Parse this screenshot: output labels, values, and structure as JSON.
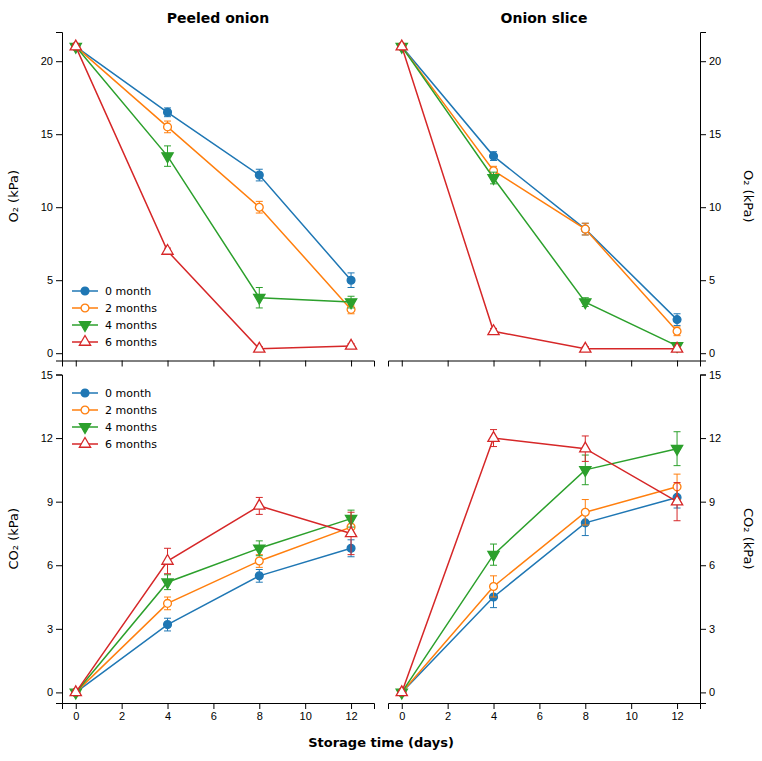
{
  "chart_data": [
    {
      "type": "line",
      "title": "Peeled onion",
      "ylabel": "O₂ (kPa)",
      "x": [
        0,
        4,
        8,
        12
      ],
      "xlim": [
        -0.6,
        13
      ],
      "xticks": [
        0,
        2,
        4,
        6,
        8,
        10,
        12
      ],
      "ylim": [
        -0.5,
        22
      ],
      "yticks": [
        0,
        5,
        10,
        15,
        20
      ],
      "tick_labels": "y",
      "grid": false,
      "legend": "lower-left",
      "series": [
        {
          "name": "0 month",
          "marker": "circle-filled",
          "values": [
            21,
            16.5,
            12.2,
            5.0
          ],
          "errors": [
            0.2,
            0.3,
            0.4,
            0.5
          ]
        },
        {
          "name": "2 months",
          "marker": "circle-open",
          "values": [
            21,
            15.5,
            10.0,
            3.0
          ],
          "errors": [
            0.2,
            0.4,
            0.4,
            0.3
          ]
        },
        {
          "name": "4 months",
          "marker": "triangle-down-filled",
          "values": [
            21,
            13.5,
            3.8,
            3.5
          ],
          "errors": [
            0.2,
            0.7,
            0.7,
            0.4
          ]
        },
        {
          "name": "6 months",
          "marker": "triangle-up-open",
          "values": [
            21,
            7.0,
            0.3,
            0.5
          ],
          "errors": [
            0.2,
            0.2,
            0.15,
            0.15
          ]
        }
      ]
    },
    {
      "type": "line",
      "title": "Onion slice",
      "ylabel": "O₂ (kPa)",
      "x": [
        0,
        4,
        8,
        12
      ],
      "xlim": [
        -0.6,
        13
      ],
      "xticks": [
        0,
        2,
        4,
        6,
        8,
        10,
        12
      ],
      "ylim": [
        -0.5,
        22
      ],
      "yticks": [
        0,
        5,
        10,
        15,
        20
      ],
      "tick_labels": "y",
      "grid": false,
      "series": [
        {
          "name": "0 month",
          "marker": "circle-filled",
          "values": [
            21,
            13.5,
            8.5,
            2.3
          ],
          "errors": [
            0.2,
            0.3,
            0.4,
            0.4
          ]
        },
        {
          "name": "2 months",
          "marker": "circle-open",
          "values": [
            21,
            12.5,
            8.5,
            1.5
          ],
          "errors": [
            0.2,
            0.3,
            0.4,
            0.3
          ]
        },
        {
          "name": "4 months",
          "marker": "triangle-down-filled",
          "values": [
            21,
            12.0,
            3.5,
            0.5
          ],
          "errors": [
            0.2,
            0.4,
            0.3,
            0.2
          ]
        },
        {
          "name": "6 months",
          "marker": "triangle-up-open",
          "values": [
            21,
            1.5,
            0.3,
            0.3
          ],
          "errors": [
            0.2,
            0.2,
            0.15,
            0.15
          ]
        }
      ]
    },
    {
      "type": "line",
      "ylabel": "CO₂ (kPa)",
      "xlabel": "Storage time (days)",
      "x": [
        0,
        4,
        8,
        12
      ],
      "xlim": [
        -0.6,
        13
      ],
      "xticks": [
        0,
        2,
        4,
        6,
        8,
        10,
        12
      ],
      "ylim": [
        -0.5,
        15
      ],
      "yticks": [
        0,
        3,
        6,
        9,
        12,
        15
      ],
      "tick_labels": true,
      "grid": false,
      "legend": "upper-left",
      "series": [
        {
          "name": "0 month",
          "marker": "circle-filled",
          "values": [
            0,
            3.2,
            5.5,
            6.8
          ],
          "errors": [
            0,
            0.3,
            0.3,
            0.4
          ]
        },
        {
          "name": "2 months",
          "marker": "circle-open",
          "values": [
            0,
            4.2,
            6.2,
            7.8
          ],
          "errors": [
            0,
            0.3,
            0.3,
            0.4
          ]
        },
        {
          "name": "4 months",
          "marker": "triangle-down-filled",
          "values": [
            0,
            5.2,
            6.8,
            8.2
          ],
          "errors": [
            0,
            0.35,
            0.35,
            0.4
          ]
        },
        {
          "name": "6 months",
          "marker": "triangle-up-open",
          "values": [
            0,
            6.2,
            8.8,
            7.5
          ],
          "errors": [
            0,
            0.6,
            0.4,
            1.0
          ]
        }
      ]
    },
    {
      "type": "line",
      "ylabel": "CO₂ (kPa)",
      "x": [
        0,
        4,
        8,
        12
      ],
      "xlim": [
        -0.6,
        13
      ],
      "xticks": [
        0,
        2,
        4,
        6,
        8,
        10,
        12
      ],
      "ylim": [
        -0.5,
        15
      ],
      "yticks": [
        0,
        3,
        6,
        9,
        12,
        15
      ],
      "tick_labels": true,
      "grid": false,
      "series": [
        {
          "name": "0 month",
          "marker": "circle-filled",
          "values": [
            0,
            4.5,
            8.0,
            9.2
          ],
          "errors": [
            0,
            0.5,
            0.6,
            0.5
          ]
        },
        {
          "name": "2 months",
          "marker": "circle-open",
          "values": [
            0,
            5.0,
            8.5,
            9.7
          ],
          "errors": [
            0,
            0.5,
            0.6,
            0.6
          ]
        },
        {
          "name": "4 months",
          "marker": "triangle-down-filled",
          "values": [
            0,
            6.5,
            10.5,
            11.5
          ],
          "errors": [
            0,
            0.5,
            0.7,
            0.8
          ]
        },
        {
          "name": "6 months",
          "marker": "triangle-up-open",
          "values": [
            0,
            12.0,
            11.5,
            9.0
          ],
          "errors": [
            0,
            0.4,
            0.6,
            0.9
          ]
        }
      ]
    }
  ]
}
